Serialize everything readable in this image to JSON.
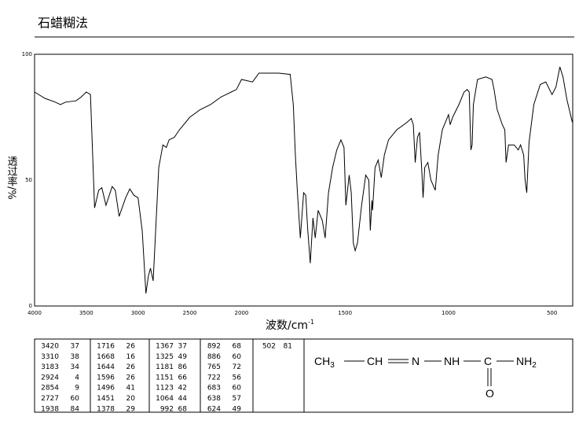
{
  "chart_data": {
    "type": "line",
    "title": "石蜡糊法",
    "xlabel": {
      "text": "波数/cm",
      "sup": "-1"
    },
    "ylabel": "透过率/%",
    "xlim": [
      4000,
      400
    ],
    "ylim": [
      0,
      100
    ],
    "xticks": [
      4000,
      3500,
      3000,
      2500,
      2000,
      1500,
      1000,
      500
    ],
    "yticks": [
      0,
      50,
      100
    ],
    "x_scale": {
      "break": 2000,
      "expand": 2
    },
    "color": "#000000",
    "grid": false,
    "x": [
      4000,
      3900,
      3800,
      3750,
      3700,
      3600,
      3550,
      3500,
      3460,
      3420,
      3380,
      3350,
      3310,
      3250,
      3220,
      3183,
      3120,
      3080,
      3040,
      3000,
      2960,
      2924,
      2900,
      2880,
      2854,
      2830,
      2800,
      2760,
      2727,
      2700,
      2650,
      2600,
      2500,
      2400,
      2300,
      2200,
      2150,
      2100,
      2050,
      2000,
      1947,
      1916,
      1850,
      1820,
      1765,
      1750,
      1740,
      1730,
      1716,
      1700,
      1690,
      1680,
      1668,
      1655,
      1644,
      1630,
      1610,
      1596,
      1580,
      1560,
      1540,
      1520,
      1505,
      1496,
      1480,
      1470,
      1460,
      1451,
      1440,
      1420,
      1400,
      1385,
      1378,
      1370,
      1367,
      1355,
      1340,
      1325,
      1310,
      1290,
      1250,
      1200,
      1180,
      1170,
      1161,
      1150,
      1140,
      1130,
      1123,
      1115,
      1100,
      1085,
      1064,
      1050,
      1030,
      1010,
      1000,
      992,
      980,
      950,
      925,
      910,
      900,
      892,
      886,
      880,
      860,
      820,
      790,
      780,
      765,
      740,
      728,
      722,
      710,
      683,
      663,
      652,
      637,
      630,
      622,
      611,
      588,
      557,
      530,
      500,
      481,
      462,
      447,
      428,
      402
    ],
    "values": [
      85,
      82.5,
      81,
      80,
      81,
      81.5,
      83,
      85,
      84,
      39,
      46,
      47,
      40,
      47.5,
      46,
      35.6,
      43,
      46.5,
      44,
      43,
      30,
      5,
      12,
      15,
      10,
      30,
      55,
      64,
      63,
      66,
      67,
      70,
      75,
      78,
      80,
      83,
      84,
      85,
      86,
      90,
      89,
      92.5,
      92.5,
      92.5,
      92,
      80,
      60,
      45,
      27,
      45,
      44,
      30,
      17,
      35,
      27,
      38,
      34,
      27,
      45,
      55,
      62,
      66,
      63,
      40,
      52,
      45,
      25,
      22,
      25,
      40,
      52,
      50,
      30,
      42,
      38,
      55,
      58,
      51,
      60,
      66,
      70,
      73,
      74.5,
      72,
      57,
      67,
      69,
      55,
      43,
      55,
      57,
      50,
      46,
      60,
      70,
      74,
      76,
      72,
      75,
      80,
      85,
      86,
      85,
      62,
      64,
      80,
      90,
      91,
      90,
      86,
      78,
      72,
      70,
      57,
      64,
      64,
      62,
      64,
      60,
      50,
      45,
      65,
      80,
      88,
      89,
      84,
      87,
      95,
      91,
      82,
      73
    ]
  },
  "table": {
    "columns": [
      [
        [
          3420,
          37
        ],
        [
          3310,
          38
        ],
        [
          3183,
          34
        ],
        [
          2924,
          4
        ],
        [
          2854,
          9
        ],
        [
          2727,
          60
        ],
        [
          1938,
          84
        ]
      ],
      [
        [
          1716,
          26
        ],
        [
          1668,
          16
        ],
        [
          1644,
          26
        ],
        [
          1596,
          26
        ],
        [
          1496,
          41
        ],
        [
          1451,
          20
        ],
        [
          1378,
          29
        ]
      ],
      [
        [
          1367,
          37
        ],
        [
          1325,
          49
        ],
        [
          1181,
          86
        ],
        [
          1151,
          66
        ],
        [
          1123,
          42
        ],
        [
          1064,
          44
        ],
        [
          992,
          68
        ]
      ],
      [
        [
          892,
          68
        ],
        [
          886,
          60
        ],
        [
          765,
          72
        ],
        [
          722,
          56
        ],
        [
          683,
          60
        ],
        [
          638,
          57
        ],
        [
          624,
          49
        ]
      ],
      [
        [
          502,
          81
        ]
      ]
    ]
  },
  "structure": {
    "atoms": [
      {
        "text": "CH",
        "sub": "3"
      },
      {
        "text": "CH"
      },
      {
        "text": "N"
      },
      {
        "text": "NH"
      },
      {
        "text": "C"
      },
      {
        "text": "NH",
        "sub": "2"
      },
      {
        "text": "O"
      }
    ]
  }
}
